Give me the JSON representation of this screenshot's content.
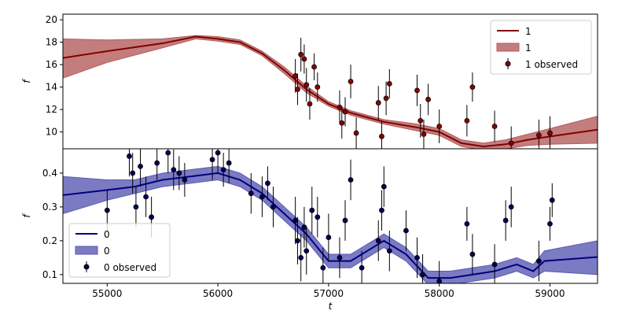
{
  "chart_data": [
    {
      "type": "line",
      "ylabel": "f",
      "legend": "upper right",
      "xlim": [
        54600,
        59430
      ],
      "ylim": [
        8.5,
        20.5
      ],
      "yticks": [
        10,
        12,
        14,
        16,
        18,
        20
      ],
      "x": [
        54600,
        55000,
        55500,
        55800,
        56000,
        56200,
        56400,
        56600,
        56800,
        57000,
        57200,
        57500,
        57800,
        58000,
        58200,
        58400,
        58600,
        58800,
        59000,
        59430
      ],
      "series": [
        {
          "name": "1",
          "color": "#800000",
          "values": [
            16.6,
            17.2,
            17.9,
            18.5,
            18.3,
            18.0,
            17.0,
            15.5,
            13.8,
            12.5,
            11.7,
            10.9,
            10.4,
            10.0,
            9.0,
            8.7,
            8.9,
            9.3,
            9.6,
            10.2
          ]
        }
      ],
      "band": {
        "name": "1",
        "color": "#b55c5c",
        "lower": [
          14.8,
          16.2,
          17.5,
          18.3,
          18.1,
          17.8,
          16.8,
          15.2,
          13.5,
          12.3,
          11.5,
          10.7,
          10.1,
          9.7,
          8.7,
          8.4,
          8.5,
          8.8,
          8.9,
          9.0
        ],
        "upper": [
          18.3,
          18.2,
          18.3,
          18.6,
          18.5,
          18.2,
          17.2,
          15.8,
          14.1,
          12.7,
          11.9,
          11.1,
          10.7,
          10.3,
          9.3,
          9.0,
          9.3,
          9.8,
          10.3,
          11.4
        ]
      },
      "observed": {
        "name": "1 observed",
        "color": "#8b0000",
        "x": [
          56700,
          56720,
          56750,
          56780,
          56800,
          56830,
          56870,
          56900,
          57100,
          57120,
          57150,
          57200,
          57250,
          57450,
          57480,
          57520,
          57550,
          57800,
          57830,
          57860,
          57900,
          58000,
          58250,
          58300,
          58500,
          58650,
          58900,
          59000
        ],
        "values": [
          15.0,
          13.8,
          16.9,
          16.5,
          14.2,
          12.5,
          15.8,
          14.0,
          12.2,
          10.8,
          11.8,
          14.5,
          9.9,
          12.6,
          9.6,
          13.0,
          14.3,
          13.7,
          11.0,
          9.8,
          12.9,
          10.5,
          11.0,
          14.0,
          10.5,
          9.0,
          9.7,
          9.9
        ],
        "errors": [
          1.5,
          1.4,
          1.5,
          1.3,
          1.5,
          1.4,
          1.2,
          1.3,
          1.5,
          1.4,
          1.3,
          1.5,
          1.4,
          1.5,
          1.4,
          1.5,
          1.3,
          1.4,
          1.5,
          1.3,
          1.4,
          1.5,
          1.4,
          1.3,
          1.4,
          1.5,
          1.4,
          1.5
        ]
      }
    },
    {
      "type": "line",
      "ylabel": "f",
      "xlabel": "t",
      "legend": "lower left",
      "xlim": [
        54600,
        59430
      ],
      "xticks": [
        55000,
        56000,
        57000,
        58000,
        59000
      ],
      "ylim": [
        0.074,
        0.472
      ],
      "yticks": [
        0.1,
        0.2,
        0.3,
        0.4
      ],
      "x": [
        54600,
        55000,
        55250,
        55500,
        55750,
        56000,
        56200,
        56400,
        56600,
        56800,
        57000,
        57200,
        57400,
        57500,
        57700,
        57900,
        58100,
        58300,
        58500,
        58700,
        58850,
        58950,
        59430
      ],
      "series": [
        {
          "name": "0",
          "color": "#00007f",
          "values": [
            0.335,
            0.35,
            0.36,
            0.38,
            0.39,
            0.4,
            0.38,
            0.34,
            0.28,
            0.22,
            0.14,
            0.14,
            0.18,
            0.2,
            0.16,
            0.09,
            0.09,
            0.1,
            0.11,
            0.13,
            0.11,
            0.14,
            0.152
          ]
        }
      ],
      "band": {
        "name": "0",
        "color": "#5a5ab4",
        "lower": [
          0.28,
          0.32,
          0.34,
          0.36,
          0.37,
          0.38,
          0.36,
          0.32,
          0.26,
          0.2,
          0.12,
          0.12,
          0.16,
          0.18,
          0.14,
          0.07,
          0.07,
          0.08,
          0.09,
          0.11,
          0.09,
          0.11,
          0.1
        ],
        "upper": [
          0.39,
          0.38,
          0.38,
          0.4,
          0.41,
          0.42,
          0.4,
          0.36,
          0.3,
          0.24,
          0.16,
          0.16,
          0.2,
          0.22,
          0.18,
          0.11,
          0.11,
          0.12,
          0.13,
          0.15,
          0.13,
          0.17,
          0.2
        ]
      },
      "observed": {
        "name": "0 observed",
        "color": "#00005a",
        "x": [
          55000,
          55200,
          55230,
          55260,
          55300,
          55350,
          55400,
          55450,
          55550,
          55600,
          55650,
          55700,
          55950,
          56000,
          56050,
          56100,
          56300,
          56400,
          56450,
          56500,
          56700,
          56720,
          56750,
          56780,
          56800,
          56850,
          56900,
          56950,
          57000,
          57100,
          57150,
          57200,
          57300,
          57450,
          57480,
          57500,
          57550,
          57700,
          57800,
          57850,
          58000,
          58250,
          58300,
          58500,
          58600,
          58650,
          58900,
          59000,
          59020
        ],
        "values": [
          0.29,
          0.45,
          0.4,
          0.3,
          0.42,
          0.33,
          0.27,
          0.43,
          0.46,
          0.41,
          0.4,
          0.38,
          0.44,
          0.46,
          0.41,
          0.43,
          0.34,
          0.33,
          0.37,
          0.3,
          0.26,
          0.2,
          0.15,
          0.24,
          0.17,
          0.29,
          0.27,
          0.12,
          0.21,
          0.15,
          0.26,
          0.38,
          0.12,
          0.2,
          0.29,
          0.36,
          0.17,
          0.23,
          0.15,
          0.1,
          0.08,
          0.25,
          0.16,
          0.13,
          0.26,
          0.3,
          0.14,
          0.25,
          0.32
        ],
        "errors": [
          0.06,
          0.06,
          0.06,
          0.06,
          0.06,
          0.06,
          0.06,
          0.05,
          0.06,
          0.06,
          0.05,
          0.05,
          0.06,
          0.06,
          0.05,
          0.06,
          0.06,
          0.06,
          0.05,
          0.06,
          0.07,
          0.07,
          0.07,
          0.06,
          0.07,
          0.07,
          0.06,
          0.06,
          0.07,
          0.06,
          0.06,
          0.06,
          0.05,
          0.06,
          0.06,
          0.06,
          0.06,
          0.06,
          0.06,
          0.06,
          0.06,
          0.05,
          0.06,
          0.06,
          0.06,
          0.06,
          0.06,
          0.05,
          0.05
        ]
      }
    }
  ]
}
